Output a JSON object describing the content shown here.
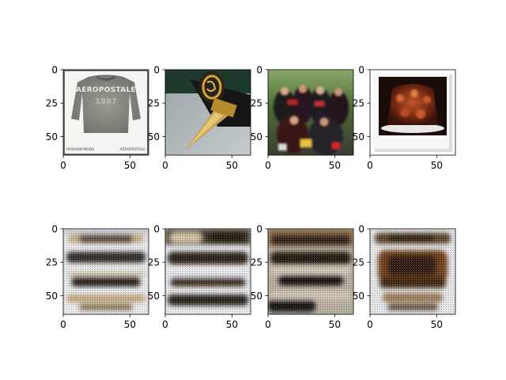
{
  "chart_data": [
    {
      "type": "heatmap",
      "panel": "top-1",
      "content": "sweater photo",
      "image_text": [
        "AEROPOSTALE",
        "1987",
        "FASHION MODA",
        "AÉROPOSTALE"
      ],
      "xticks": [
        "0",
        "50"
      ],
      "yticks": [
        "0",
        "25",
        "50"
      ],
      "xlim": [
        0,
        64
      ],
      "ylim": [
        64,
        0
      ]
    },
    {
      "type": "heatmap",
      "panel": "top-2",
      "content": "fountain pen photo",
      "xticks": [
        "0",
        "50"
      ],
      "yticks": [
        "0",
        "25",
        "50"
      ],
      "xlim": [
        0,
        64
      ],
      "ylim": [
        64,
        0
      ]
    },
    {
      "type": "heatmap",
      "panel": "top-3",
      "content": "graduation group photo",
      "xticks": [
        "0",
        "50"
      ],
      "yticks": [
        "0",
        "25",
        "50"
      ],
      "xlim": [
        0,
        64
      ],
      "ylim": [
        64,
        0
      ]
    },
    {
      "type": "heatmap",
      "panel": "top-4",
      "content": "dessert polaroid photo",
      "xticks": [
        "0",
        "50"
      ],
      "yticks": [
        "0",
        "25",
        "50"
      ],
      "xlim": [
        0,
        64
      ],
      "ylim": [
        64,
        0
      ]
    },
    {
      "type": "heatmap",
      "panel": "bottom-1",
      "content": "generated striped pattern",
      "xticks": [
        "0",
        "50"
      ],
      "yticks": [
        "0",
        "25",
        "50"
      ],
      "xlim": [
        0,
        64
      ],
      "ylim": [
        64,
        0
      ]
    },
    {
      "type": "heatmap",
      "panel": "bottom-2",
      "content": "generated striped pattern",
      "xticks": [
        "0",
        "50"
      ],
      "yticks": [
        "0",
        "25",
        "50"
      ],
      "xlim": [
        0,
        64
      ],
      "ylim": [
        64,
        0
      ]
    },
    {
      "type": "heatmap",
      "panel": "bottom-3",
      "content": "generated striped pattern",
      "xticks": [
        "0",
        "50"
      ],
      "yticks": [
        "0",
        "25",
        "50"
      ],
      "xlim": [
        0,
        64
      ],
      "ylim": [
        64,
        0
      ]
    },
    {
      "type": "heatmap",
      "panel": "bottom-4",
      "content": "generated striped pattern",
      "xticks": [
        "0",
        "50"
      ],
      "yticks": [
        "0",
        "25",
        "50"
      ],
      "xlim": [
        0,
        64
      ],
      "ylim": [
        64,
        0
      ]
    }
  ]
}
